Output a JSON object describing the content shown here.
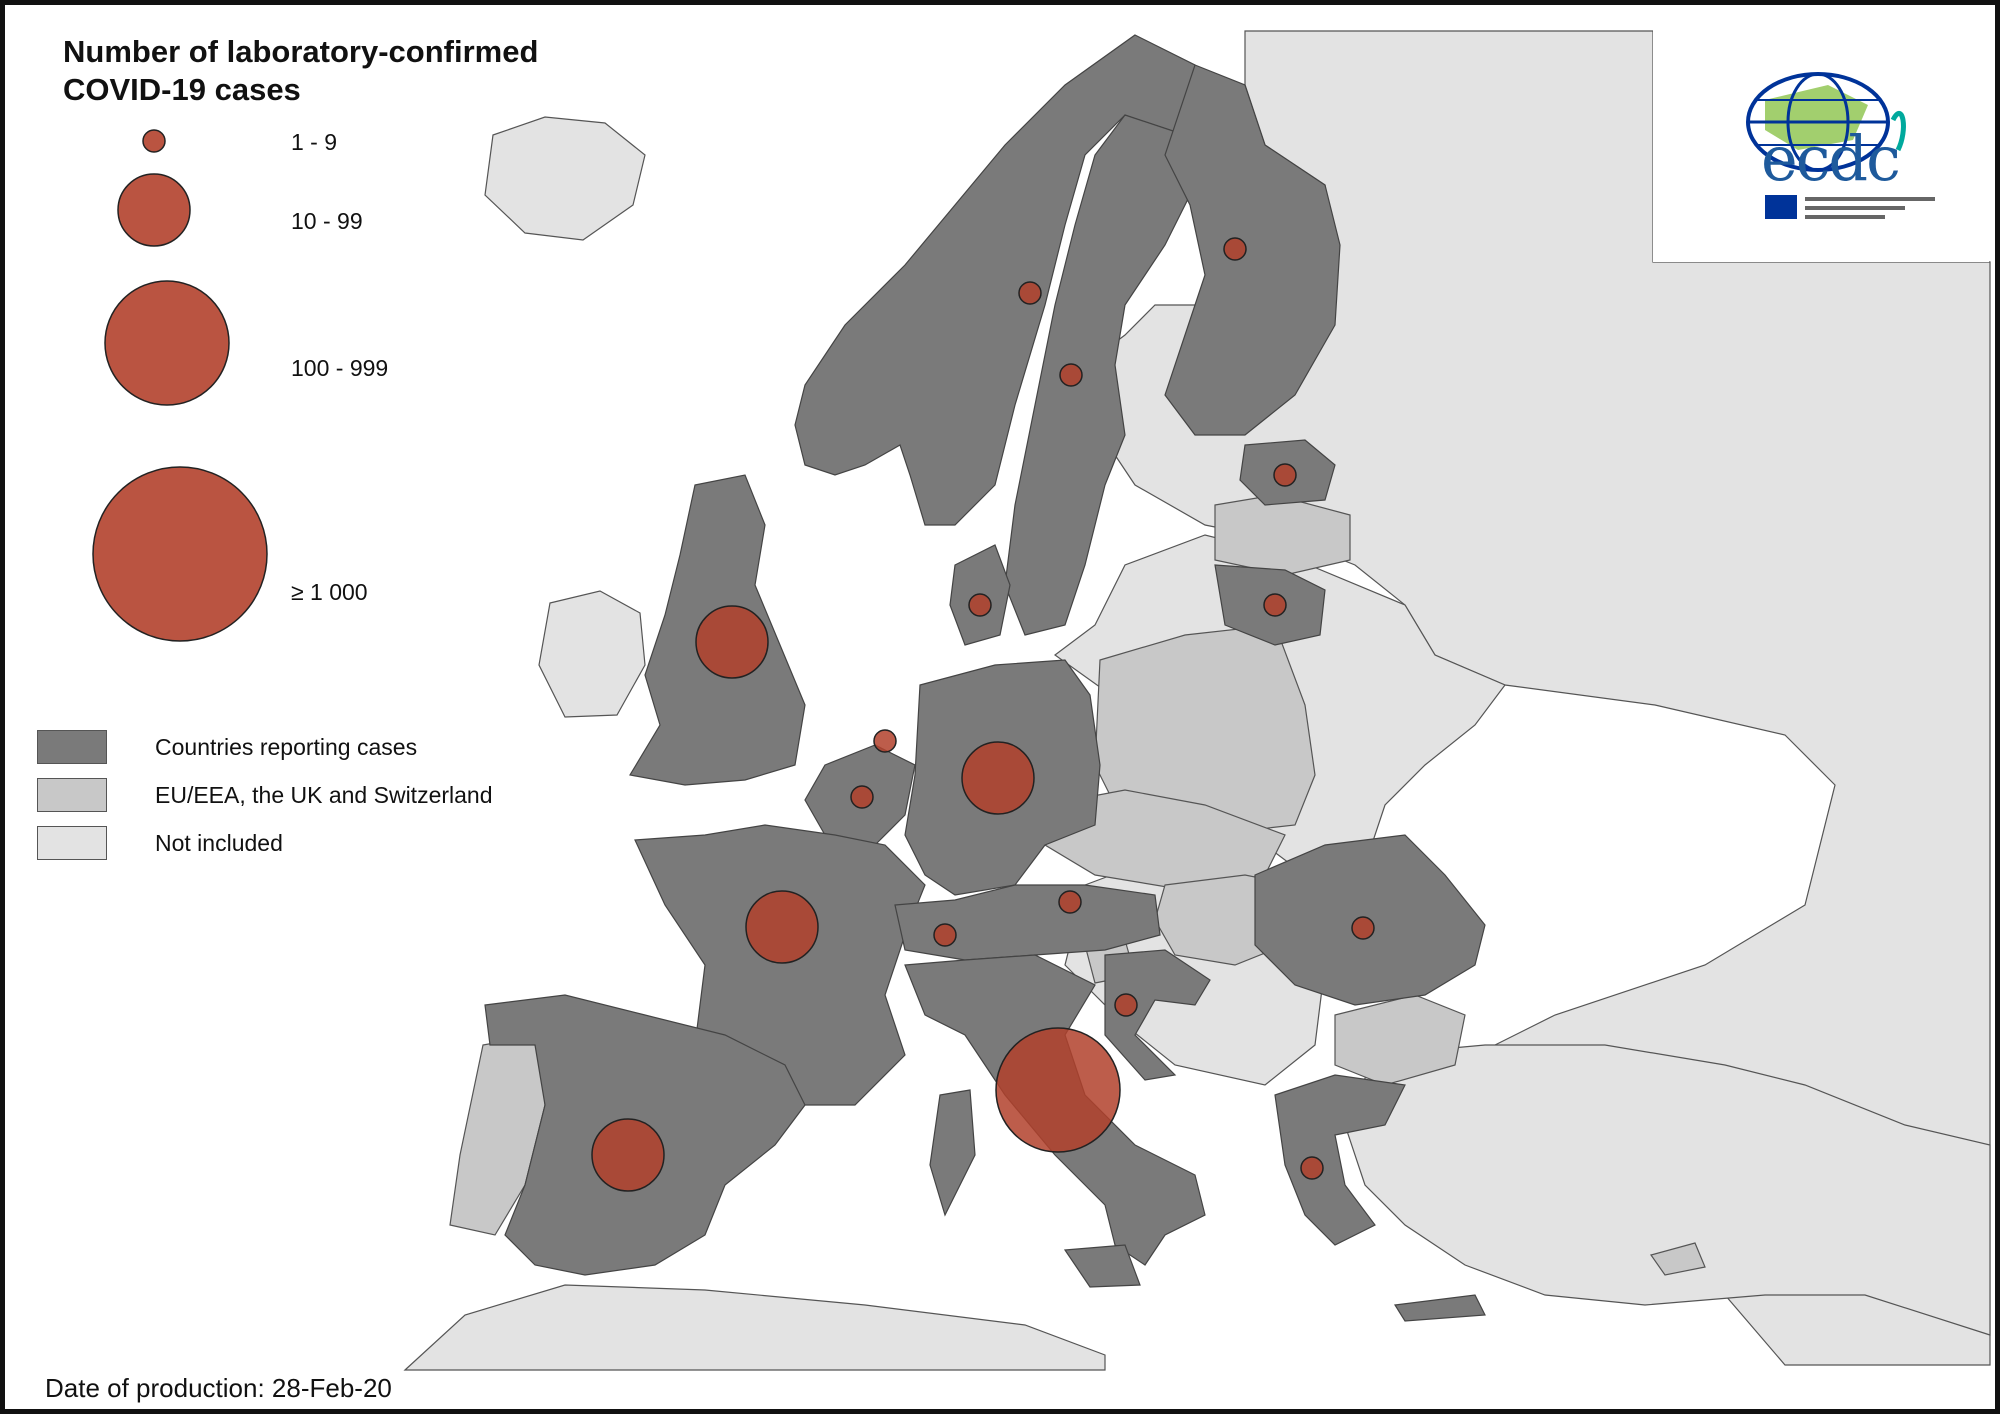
{
  "legend": {
    "title_line1": "Number of laboratory-confirmed",
    "title_line2": "COVID-19 cases",
    "size_classes": [
      "1 - 9",
      "10 - 99",
      "100 - 999",
      "≥ 1 000"
    ],
    "categories": [
      "Countries reporting cases",
      "EU/EEA, the UK and Switzerland",
      "Not included"
    ]
  },
  "colors": {
    "reporting": "#7a7a7a",
    "eu_eea": "#c8c8c8",
    "not_included": "#e3e3e3",
    "bubble": "#b2412c",
    "sea": "#ffffff",
    "logo_green": "#00a99d",
    "logo_blue": "#003399"
  },
  "logo": {
    "name": "ecdc-logo",
    "text": "ecdc"
  },
  "footer": {
    "date_of_production": "Date of production: 28-Feb-20"
  },
  "bubbles": [
    {
      "country": "Finland",
      "class": "1 - 9"
    },
    {
      "country": "Norway",
      "class": "1 - 9"
    },
    {
      "country": "Sweden",
      "class": "1 - 9"
    },
    {
      "country": "Estonia",
      "class": "1 - 9"
    },
    {
      "country": "Lithuania",
      "class": "1 - 9"
    },
    {
      "country": "Denmark",
      "class": "1 - 9"
    },
    {
      "country": "United Kingdom",
      "class": "10 - 99"
    },
    {
      "country": "Netherlands",
      "class": "1 - 9"
    },
    {
      "country": "Belgium",
      "class": "1 - 9"
    },
    {
      "country": "Germany",
      "class": "10 - 99"
    },
    {
      "country": "France",
      "class": "10 - 99"
    },
    {
      "country": "Switzerland",
      "class": "1 - 9"
    },
    {
      "country": "Austria",
      "class": "1 - 9"
    },
    {
      "country": "Croatia",
      "class": "1 - 9"
    },
    {
      "country": "Romania",
      "class": "1 - 9"
    },
    {
      "country": "Italy",
      "class": "100 - 999"
    },
    {
      "country": "Spain",
      "class": "10 - 99"
    },
    {
      "country": "Greece",
      "class": "1 - 9"
    }
  ]
}
